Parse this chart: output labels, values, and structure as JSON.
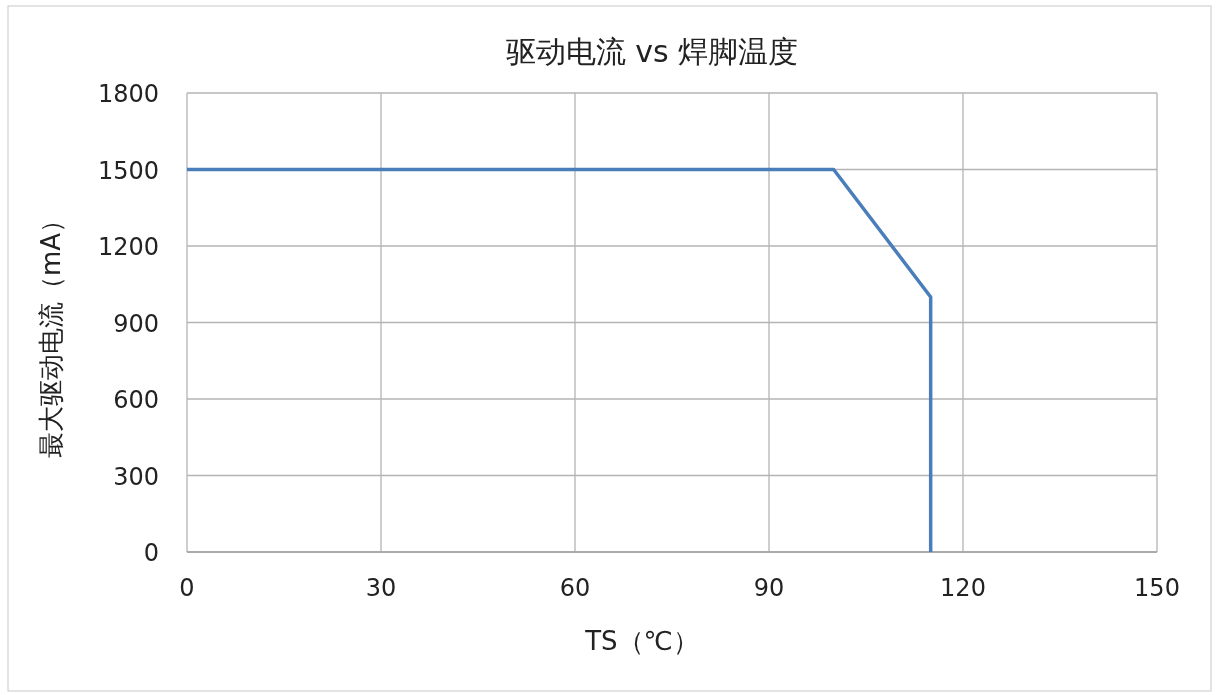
{
  "chart_data": {
    "type": "line",
    "title": "驱动电流 vs 焊脚温度",
    "xlabel": "TS（℃）",
    "ylabel": "最大驱动电流（mA）",
    "x": [
      0,
      100,
      115,
      115
    ],
    "series": [
      {
        "color": "#4a7ebb",
        "values": [
          1500,
          1500,
          1000,
          0
        ]
      }
    ],
    "xlim": [
      0,
      150
    ],
    "ylim": [
      0,
      1800
    ],
    "xticks": [
      0,
      30,
      60,
      90,
      120,
      150
    ],
    "yticks": [
      0,
      300,
      600,
      900,
      1200,
      1500,
      1800
    ],
    "grid": true
  }
}
